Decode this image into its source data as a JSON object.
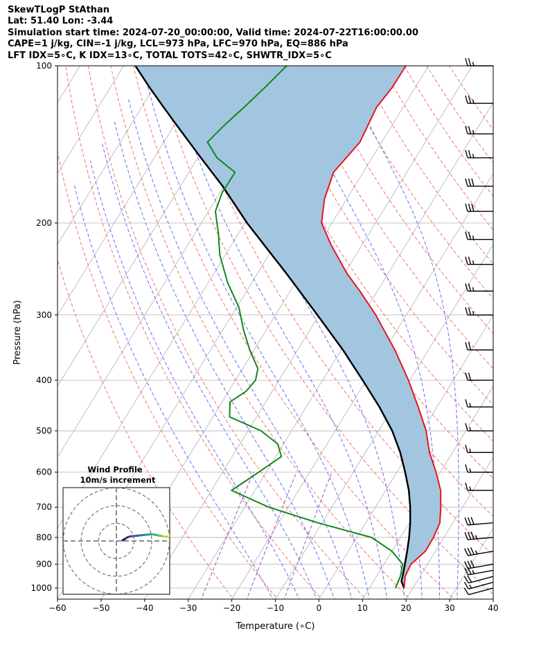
{
  "header": {
    "title": "SkewTLogP StAthan",
    "location": "Lat: 51.40   Lon: -3.44",
    "times": "Simulation start time: 2024-07-20_00:00:00, Valid time: 2024-07-22T16:00:00.00",
    "indices1": "CAPE=1 j/kg, CIN=-1 j/kg, LCL=973 hPa, LFC=970 hPa, EQ=886 hPa",
    "indices2": "LFT IDX=5∘C, K IDX=13∘C, TOTAL TOTS=42∘C, SHWTR_IDX=5∘C"
  },
  "chart_data": {
    "type": "line",
    "xlabel": "Temperature (∘C)",
    "ylabel": "Pressure (hPa)",
    "xlim": [
      -60,
      40
    ],
    "ylim": [
      1050,
      100
    ],
    "yscale": "log",
    "skew": true,
    "grid": true,
    "x_ticks": [
      -60,
      -50,
      -40,
      -30,
      -20,
      -10,
      0,
      10,
      20,
      30,
      40
    ],
    "x_tick_labels": [
      "−60",
      "−50",
      "−40",
      "−30",
      "−20",
      "−10",
      "0",
      "10",
      "20",
      "30",
      "40"
    ],
    "y_ticks": [
      1000,
      900,
      800,
      700,
      600,
      500,
      400,
      300,
      200,
      100
    ],
    "y_tick_labels": [
      "1000",
      "900",
      "800",
      "700",
      "600",
      "500",
      "400",
      "300",
      "200",
      "100"
    ],
    "colors": {
      "temperature": "#e8141b",
      "dewpoint": "#11871a",
      "parcel": "#000000",
      "cape_fill": "#a3c6e0",
      "dry_adiabats": "#f47171",
      "moist_adiabats": "#6b6bf5",
      "mixing_ratio": "#9a4fbe",
      "isotherms": "#b0b0b0"
    },
    "series": [
      {
        "key": "temperature",
        "pressure": [
          1000,
          950,
          900,
          850,
          800,
          750,
          700,
          650,
          600,
          550,
          500,
          450,
          400,
          350,
          300,
          270,
          250,
          220,
          200,
          180,
          160,
          140,
          120,
          110,
          100
        ],
        "temp": [
          18.0,
          16.6,
          16.2,
          17.7,
          17.6,
          17.0,
          15.0,
          12.6,
          9.0,
          4.7,
          0.9,
          -4.3,
          -10.3,
          -17.7,
          -27.0,
          -34.0,
          -39.4,
          -47.2,
          -52.4,
          -55.1,
          -56.8,
          -55.0,
          -56.1,
          -55.3,
          -55.2
        ]
      },
      {
        "key": "dewpoint",
        "pressure": [
          1000,
          950,
          900,
          850,
          800,
          750,
          700,
          650,
          620,
          600,
          560,
          530,
          500,
          470,
          440,
          420,
          400,
          380,
          350,
          320,
          290,
          260,
          230,
          210,
          190,
          175,
          160,
          150,
          140,
          130,
          120,
          110,
          100
        ],
        "temp": [
          16.0,
          15.5,
          14.3,
          10.0,
          3.4,
          -11.0,
          -24.5,
          -35.4,
          -33.2,
          -31.7,
          -28.7,
          -31.3,
          -37.0,
          -46.2,
          -48.2,
          -46.0,
          -45.4,
          -46.5,
          -51.0,
          -55.3,
          -59.5,
          -65.6,
          -71.3,
          -74.5,
          -78.4,
          -79.5,
          -79.4,
          -85.6,
          -90.0,
          -88.5,
          -86.5,
          -84.5,
          -82.6
        ]
      },
      {
        "key": "parcel",
        "pressure": [
          1000,
          970,
          950,
          900,
          850,
          800,
          750,
          700,
          650,
          600,
          550,
          500,
          450,
          400,
          350,
          300,
          250,
          200,
          170,
          150,
          130,
          120,
          110,
          100
        ],
        "temp": [
          18.0,
          16.4,
          16.0,
          14.8,
          13.5,
          12.0,
          10.2,
          8.0,
          5.3,
          1.9,
          -2.0,
          -6.9,
          -13.2,
          -20.8,
          -29.6,
          -40.4,
          -53.3,
          -69.5,
          -80.3,
          -89.3,
          -99.4,
          -105.0,
          -111.0,
          -117.3
        ]
      }
    ],
    "cape_region": "shaded between temperature and parcel curves",
    "wind_barbs": {
      "pressure": [
        1000,
        975,
        950,
        925,
        900,
        850,
        800,
        750,
        650,
        600,
        550,
        500,
        450,
        400,
        350,
        300,
        270,
        240,
        215,
        190,
        170,
        150,
        135,
        118,
        100
      ],
      "speed_kt": [
        10,
        15,
        20,
        25,
        30,
        35,
        35,
        30,
        15,
        15,
        15,
        15,
        15,
        20,
        20,
        25,
        25,
        25,
        25,
        30,
        30,
        25,
        25,
        25,
        25
      ],
      "direction_deg": [
        255,
        255,
        255,
        260,
        260,
        260,
        265,
        265,
        270,
        270,
        270,
        270,
        270,
        270,
        270,
        270,
        270,
        270,
        270,
        270,
        270,
        270,
        270,
        270,
        270
      ]
    },
    "inset": {
      "title": "Wind Profile",
      "subtitle": "10m/s increment",
      "type": "hodograph",
      "rings_ms": [
        10,
        20,
        30
      ],
      "u": [
        3.5,
        4.5,
        5.5,
        6.5,
        8.0,
        10.0,
        12.0,
        14.0,
        16.0,
        18.0,
        20.0,
        22.0,
        24.5,
        26.5,
        28.5,
        30.0,
        31.0
      ],
      "v": [
        0.3,
        1.0,
        1.5,
        2.2,
        2.6,
        2.8,
        3.0,
        3.2,
        3.4,
        3.6,
        3.9,
        3.5,
        3.0,
        2.6,
        2.4,
        2.8,
        3.2
      ]
    }
  }
}
